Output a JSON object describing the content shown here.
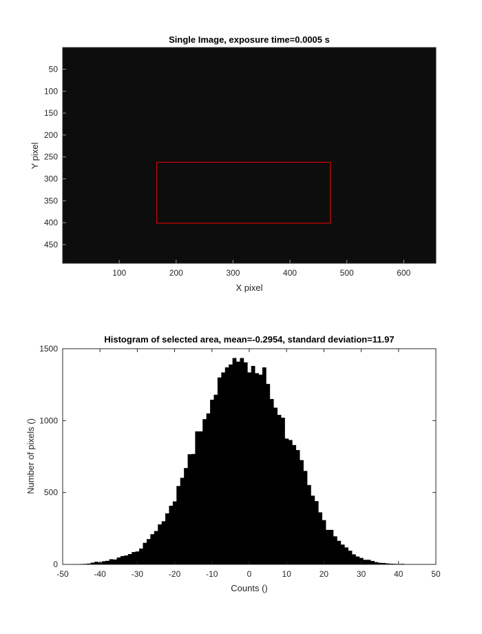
{
  "chart_data": [
    {
      "type": "heatmap",
      "title": "Single Image, exposure time=0.0005 s",
      "xlabel": "X pixel",
      "ylabel": "Y pixel",
      "xlim": [
        0.5,
        656.5
      ],
      "ylim": [
        0.5,
        492.5
      ],
      "y_reversed": true,
      "x_ticks": [
        100,
        200,
        300,
        400,
        500,
        600
      ],
      "y_ticks": [
        50,
        100,
        150,
        200,
        250,
        300,
        350,
        400,
        450
      ],
      "image_color": "#0d0d0d",
      "roi_box": {
        "x": [
          166,
          471
        ],
        "y": [
          262,
          401
        ],
        "color": "#ff0000"
      }
    },
    {
      "type": "bar",
      "title": "Histogram of selected area, mean=-0.2954, standard deviation=11.97",
      "xlabel": "Counts ()",
      "ylabel": "Number of pixels ()",
      "xlim": [
        -50,
        50
      ],
      "ylim": [
        0,
        1500
      ],
      "x_ticks": [
        -50,
        -40,
        -30,
        -20,
        -10,
        0,
        10,
        20,
        30,
        40,
        50
      ],
      "y_ticks": [
        0,
        500,
        1000,
        1500
      ],
      "bar_color": "#000000",
      "x": [
        -48,
        -47,
        -46,
        -45,
        -44,
        -43,
        -42,
        -41,
        -40,
        -39,
        -38,
        -37,
        -36,
        -35,
        -34,
        -33,
        -32,
        -31,
        -30,
        -29,
        -28,
        -27,
        -26,
        -25,
        -24,
        -23,
        -22,
        -21,
        -20,
        -19,
        -18,
        -17,
        -16,
        -15,
        -14,
        -13,
        -12,
        -11,
        -10,
        -9,
        -8,
        -7,
        -6,
        -5,
        -4,
        -3,
        -2,
        -1,
        0,
        1,
        2,
        3,
        4,
        5,
        6,
        7,
        8,
        9,
        10,
        11,
        12,
        13,
        14,
        15,
        16,
        17,
        18,
        19,
        20,
        21,
        22,
        23,
        24,
        25,
        26,
        27,
        28,
        29,
        30,
        31,
        32,
        33,
        34,
        35,
        36,
        37,
        38,
        39,
        40,
        41,
        42,
        43,
        44,
        45,
        46,
        47,
        48
      ],
      "values": [
        1,
        1,
        2,
        3,
        4,
        6,
        12,
        18,
        14,
        22,
        25,
        36,
        34,
        48,
        58,
        62,
        72,
        86,
        90,
        110,
        150,
        176,
        210,
        232,
        278,
        300,
        355,
        408,
        438,
        545,
        602,
        670,
        766,
        768,
        925,
        925,
        1010,
        1050,
        1145,
        1180,
        1300,
        1335,
        1370,
        1390,
        1435,
        1410,
        1435,
        1405,
        1335,
        1380,
        1330,
        1320,
        1370,
        1255,
        1150,
        1090,
        1040,
        1020,
        875,
        865,
        830,
        795,
        725,
        650,
        552,
        478,
        440,
        362,
        308,
        240,
        240,
        195,
        164,
        138,
        118,
        95,
        70,
        55,
        45,
        32,
        32,
        24,
        16,
        11,
        10,
        7,
        5,
        4,
        3,
        4,
        2,
        2,
        1,
        2,
        1,
        1,
        1
      ]
    }
  ]
}
